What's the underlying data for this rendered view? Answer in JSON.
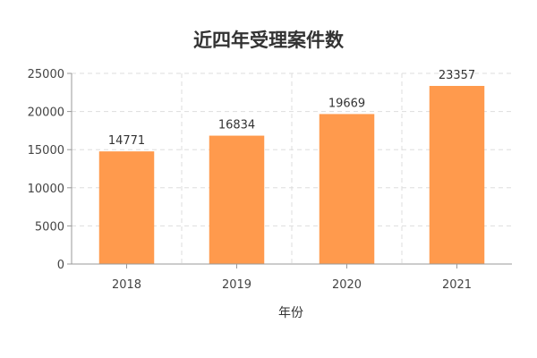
{
  "chart_data": {
    "type": "bar",
    "title": "近四年受理案件数",
    "xlabel": "年份",
    "ylabel": "",
    "categories": [
      "2018",
      "2019",
      "2020",
      "2021"
    ],
    "values": [
      14771,
      16834,
      19669,
      23357
    ],
    "ylim": [
      0,
      25000
    ],
    "yticks": [
      0,
      5000,
      10000,
      15000,
      20000,
      25000
    ],
    "grid": true,
    "data_labels": true,
    "bar_color": "#ff9a4d",
    "gridline_color": "#dddddd"
  }
}
